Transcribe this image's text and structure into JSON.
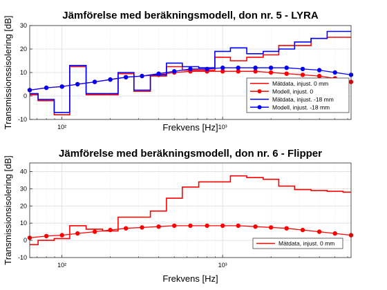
{
  "chart_data": [
    {
      "type": "line",
      "title": "Jämförelse med beräkningsmodell, don nr. 5 - LYRA",
      "xlabel": "Frekvens [Hz]",
      "ylabel": "Transmissionssisolering [dB]",
      "xscale": "log",
      "xlim": [
        63,
        6300
      ],
      "ylim": [
        -10,
        30
      ],
      "xticks": [
        {
          "value": 100,
          "label": "10²"
        },
        {
          "value": 1000,
          "label": "10³"
        }
      ],
      "yticks": [
        -10,
        0,
        10,
        20,
        30
      ],
      "grid": true,
      "legend_position": "bottom-right",
      "x": [
        63,
        80,
        100,
        125,
        160,
        200,
        250,
        315,
        400,
        500,
        630,
        800,
        1000,
        1250,
        1600,
        2000,
        2500,
        3150,
        4000,
        5000,
        6300
      ],
      "series": [
        {
          "name": "Mätdata, injust. 0 mm",
          "color": "#ff0000",
          "style": "stairs",
          "marker": "none",
          "values": [
            0.5,
            -2,
            -8,
            12.5,
            0.5,
            0.5,
            9.5,
            2,
            8.5,
            12.5,
            11,
            11,
            16.5,
            15,
            16.5,
            17.5,
            21.5,
            21.5,
            24.5,
            25,
            25
          ]
        },
        {
          "name": "Modell, injust. 0",
          "color": "#ff0000",
          "style": "line",
          "marker": "circle",
          "values": [
            2.5,
            3.5,
            4,
            5,
            6,
            7,
            8,
            8.5,
            9,
            10,
            10.5,
            10.5,
            10.5,
            10.5,
            10.5,
            10,
            9.5,
            9,
            8.5,
            7.5,
            6
          ]
        },
        {
          "name": "Mätdata, injust. -18 mm",
          "color": "#0000ff",
          "style": "stairs",
          "marker": "none",
          "values": [
            1,
            -1.5,
            -7,
            13,
            1,
            1,
            10,
            2.5,
            9,
            14,
            12.5,
            12,
            19,
            20.5,
            18,
            19,
            20,
            23,
            24.5,
            27.5,
            27.5
          ]
        },
        {
          "name": "Modell, injust. -18 mm",
          "color": "#0000ff",
          "style": "line",
          "marker": "circle",
          "values": [
            2.5,
            3.5,
            4,
            5,
            6,
            7,
            8,
            8.5,
            9.5,
            10.5,
            11.5,
            11.5,
            12,
            12,
            12,
            12,
            12,
            11.5,
            11,
            10,
            9
          ]
        }
      ]
    },
    {
      "type": "line",
      "title": "Jämförelse med beräkningsmodell, don nr. 6 - Flipper",
      "xlabel": "Frekvens [Hz]",
      "ylabel": "Transmissionsisolering [dB]",
      "xscale": "log",
      "xlim": [
        63,
        6300
      ],
      "ylim": [
        -10,
        45
      ],
      "xticks": [
        {
          "value": 100,
          "label": "10²"
        },
        {
          "value": 1000,
          "label": "10³"
        }
      ],
      "yticks": [
        -10,
        0,
        10,
        20,
        30,
        40
      ],
      "grid": true,
      "legend_position": "bottom-right",
      "x": [
        63,
        80,
        100,
        125,
        160,
        200,
        250,
        315,
        400,
        500,
        630,
        800,
        1000,
        1250,
        1600,
        2000,
        2500,
        3150,
        4000,
        5000,
        6300
      ],
      "series": [
        {
          "name": "Mätdata, injust. 0 mm",
          "color": "#ff0000",
          "style": "stairs",
          "marker": "none",
          "values": [
            -2.5,
            0,
            1,
            8.5,
            6.5,
            5.5,
            13.5,
            13.5,
            17,
            24.5,
            31,
            34,
            34,
            37.5,
            36.5,
            35.5,
            31.5,
            29.5,
            29,
            28.5,
            28
          ]
        },
        {
          "name": "",
          "color": "#ff0000",
          "style": "line",
          "marker": "circle",
          "values": [
            1.5,
            2.5,
            3,
            4,
            5,
            6,
            7,
            7.5,
            8,
            8.5,
            8.5,
            8.5,
            8.5,
            8.5,
            8,
            7.5,
            7,
            6,
            5,
            4,
            3
          ]
        }
      ]
    }
  ]
}
